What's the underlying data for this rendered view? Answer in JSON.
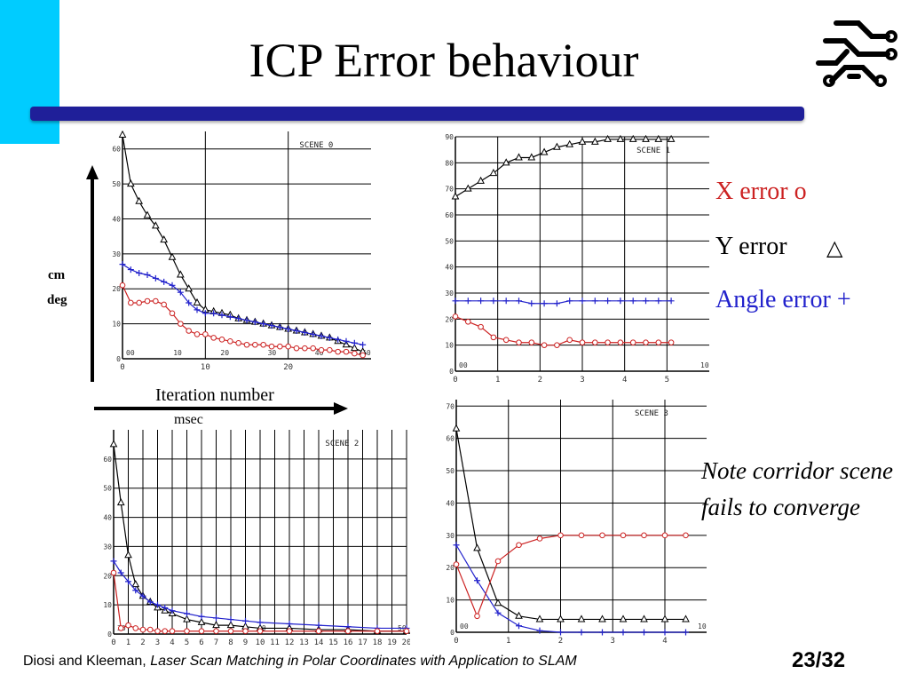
{
  "slide": {
    "title": "ICP Error behaviour",
    "page_number": "23/32",
    "footer_authors": "Diosi and Kleeman, ",
    "footer_work": "Laser Scan Matching in Polar Coordinates with Application to SLAM",
    "colors": {
      "accent": "#00ccff",
      "title_bar": "#1f1f99",
      "x_error": "#cc2222",
      "y_error": "#000000",
      "angle_error": "#2222cc"
    }
  },
  "axes_annotation": {
    "y_unit_1": "cm",
    "y_unit_2": "deg",
    "x_label": "Iteration number",
    "x_label_2": "msec"
  },
  "legend": {
    "x_error": "X error o",
    "y_error": "Y error",
    "y_error_marker": "△",
    "angle_error": "Angle error +"
  },
  "note": "Note corridor scene fails to converge",
  "chart_data": [
    {
      "type": "line",
      "title": "SCENE 0",
      "xlim": [
        0,
        30
      ],
      "ylim": [
        0,
        65
      ],
      "x_ticks": [
        0,
        10,
        20
      ],
      "y_ticks": [
        0,
        10,
        20,
        30,
        40,
        50,
        60
      ],
      "inner_ticks": [
        "00",
        "10",
        "20",
        "30",
        "40",
        "50"
      ],
      "grid": true,
      "series": [
        {
          "marker": "triangle",
          "color": "#000000",
          "x": [
            0,
            1,
            2,
            3,
            4,
            5,
            6,
            7,
            8,
            9,
            10,
            11,
            12,
            13,
            14,
            15,
            16,
            17,
            18,
            19,
            20,
            21,
            22,
            23,
            24,
            25,
            26,
            27,
            28,
            29
          ],
          "y": [
            64,
            50,
            45,
            41,
            38,
            34,
            29,
            24,
            20,
            16,
            14,
            13.5,
            13,
            12.5,
            11.5,
            11,
            10.5,
            10,
            9.5,
            9,
            8.5,
            8,
            7.5,
            7,
            6.5,
            6,
            5,
            4,
            3,
            2
          ]
        },
        {
          "marker": "plus",
          "color": "#2222cc",
          "x": [
            0,
            1,
            2,
            3,
            4,
            5,
            6,
            7,
            8,
            9,
            10,
            11,
            12,
            13,
            14,
            15,
            16,
            17,
            18,
            19,
            20,
            21,
            22,
            23,
            24,
            25,
            26,
            27,
            28,
            29
          ],
          "y": [
            27,
            25.5,
            24.5,
            24,
            23,
            22,
            21,
            19,
            16,
            14,
            13,
            13,
            12.5,
            12,
            11.5,
            11,
            10.5,
            10,
            9.5,
            9,
            8.5,
            8,
            7.5,
            7,
            6.5,
            6,
            5.5,
            5,
            4.5,
            4
          ]
        },
        {
          "marker": "circle",
          "color": "#cc2222",
          "x": [
            0,
            1,
            2,
            3,
            4,
            5,
            6,
            7,
            8,
            9,
            10,
            11,
            12,
            13,
            14,
            15,
            16,
            17,
            18,
            19,
            20,
            21,
            22,
            23,
            24,
            25,
            26,
            27,
            28,
            29
          ],
          "y": [
            21,
            16,
            16,
            16.5,
            16.5,
            15.5,
            13,
            10,
            8,
            7,
            7,
            6,
            5.5,
            5,
            4.5,
            4,
            4,
            4,
            3.5,
            3.5,
            3.5,
            3,
            3,
            3,
            2.5,
            2.5,
            2,
            2,
            1.5,
            1
          ]
        }
      ]
    },
    {
      "type": "line",
      "title": "SCENE 1",
      "xlim": [
        0,
        6
      ],
      "ylim": [
        0,
        90
      ],
      "x_ticks": [
        0,
        1,
        2,
        3,
        4,
        5
      ],
      "y_ticks": [
        0,
        10,
        20,
        30,
        40,
        50,
        60,
        70,
        80,
        90
      ],
      "inner_ticks": [
        "00",
        "10"
      ],
      "grid": true,
      "series": [
        {
          "marker": "triangle",
          "color": "#000000",
          "x": [
            0,
            0.3,
            0.6,
            0.9,
            1.2,
            1.5,
            1.8,
            2.1,
            2.4,
            2.7,
            3.0,
            3.3,
            3.6,
            3.9,
            4.2,
            4.5,
            4.8,
            5.1
          ],
          "y": [
            67,
            70,
            73,
            76,
            80,
            82,
            82,
            84,
            86,
            87,
            88,
            88,
            89,
            89,
            89,
            89,
            89,
            89
          ]
        },
        {
          "marker": "plus",
          "color": "#2222cc",
          "x": [
            0,
            0.3,
            0.6,
            0.9,
            1.2,
            1.5,
            1.8,
            2.1,
            2.4,
            2.7,
            3.0,
            3.3,
            3.6,
            3.9,
            4.2,
            4.5,
            4.8,
            5.1
          ],
          "y": [
            27,
            27,
            27,
            27,
            27,
            27,
            26,
            26,
            26,
            27,
            27,
            27,
            27,
            27,
            27,
            27,
            27,
            27
          ]
        },
        {
          "marker": "circle",
          "color": "#cc2222",
          "x": [
            0,
            0.3,
            0.6,
            0.9,
            1.2,
            1.5,
            1.8,
            2.1,
            2.4,
            2.7,
            3.0,
            3.3,
            3.6,
            3.9,
            4.2,
            4.5,
            4.8,
            5.1
          ],
          "y": [
            21,
            19,
            17,
            13,
            12,
            11,
            11,
            10,
            10,
            12,
            11,
            11,
            11,
            11,
            11,
            11,
            11,
            11
          ]
        }
      ]
    },
    {
      "type": "line",
      "title": "SCENE 2",
      "xlim": [
        0,
        20
      ],
      "ylim": [
        0,
        70
      ],
      "x_ticks": [
        0,
        1,
        2,
        3,
        4,
        5,
        6,
        7,
        8,
        9,
        10,
        11,
        12,
        13,
        14,
        15,
        16,
        17,
        18,
        19,
        20
      ],
      "y_ticks": [
        0,
        10,
        20,
        30,
        40,
        50,
        60
      ],
      "inner_ticks": [
        "30",
        "40",
        "50"
      ],
      "grid": true,
      "series": [
        {
          "marker": "triangle",
          "color": "#000000",
          "x": [
            0,
            0.5,
            1,
            1.5,
            2,
            2.5,
            3,
            3.5,
            4,
            5,
            6,
            7,
            8,
            9,
            10,
            12,
            14,
            16,
            18,
            20
          ],
          "y": [
            65,
            45,
            27,
            17,
            13,
            11,
            9,
            8,
            7,
            5,
            4,
            3,
            3,
            2.5,
            2,
            2,
            1.5,
            1.5,
            1,
            1
          ]
        },
        {
          "marker": "plus",
          "color": "#2222cc",
          "x": [
            0,
            0.5,
            1,
            1.5,
            2,
            2.5,
            3,
            3.5,
            4,
            5,
            6,
            7,
            8,
            9,
            10,
            12,
            14,
            16,
            18,
            20
          ],
          "y": [
            25,
            21,
            18,
            15,
            13,
            11,
            10,
            9,
            8,
            7,
            6,
            5.5,
            5,
            4.5,
            4,
            3.5,
            3,
            2.5,
            2,
            2
          ]
        },
        {
          "marker": "circle",
          "color": "#cc2222",
          "x": [
            0,
            0.5,
            1,
            1.5,
            2,
            2.5,
            3,
            3.5,
            4,
            5,
            6,
            7,
            8,
            9,
            10,
            12,
            14,
            16,
            18,
            20
          ],
          "y": [
            21,
            2,
            3,
            2,
            1.5,
            1.5,
            1,
            1,
            1,
            1,
            1,
            1,
            1,
            1,
            1,
            1,
            1,
            1,
            1,
            1
          ]
        }
      ]
    },
    {
      "type": "line",
      "title": "SCENE 3",
      "xlim": [
        0,
        4.8
      ],
      "ylim": [
        0,
        72
      ],
      "x_ticks": [
        0,
        1,
        2,
        3,
        4
      ],
      "y_ticks": [
        0,
        10,
        20,
        30,
        40,
        50,
        60,
        70
      ],
      "inner_ticks": [
        "00",
        "10"
      ],
      "grid": true,
      "series": [
        {
          "marker": "triangle",
          "color": "#000000",
          "x": [
            0,
            0.4,
            0.8,
            1.2,
            1.6,
            2.0,
            2.4,
            2.8,
            3.2,
            3.6,
            4.0,
            4.4
          ],
          "y": [
            63,
            26,
            9,
            5,
            4,
            4,
            4,
            4,
            4,
            4,
            4,
            4
          ]
        },
        {
          "marker": "plus",
          "color": "#2222cc",
          "x": [
            0,
            0.4,
            0.8,
            1.2,
            1.6,
            2.0,
            2.4,
            2.8,
            3.2,
            3.6,
            4.0,
            4.4
          ],
          "y": [
            27,
            16,
            6,
            2,
            0.5,
            0,
            0,
            0,
            0,
            0,
            0,
            0
          ]
        },
        {
          "marker": "circle",
          "color": "#cc2222",
          "x": [
            0,
            0.4,
            0.8,
            1.2,
            1.6,
            2.0,
            2.4,
            2.8,
            3.2,
            3.6,
            4.0,
            4.4
          ],
          "y": [
            21,
            5,
            22,
            27,
            29,
            30,
            30,
            30,
            30,
            30,
            30,
            30
          ]
        }
      ]
    }
  ]
}
